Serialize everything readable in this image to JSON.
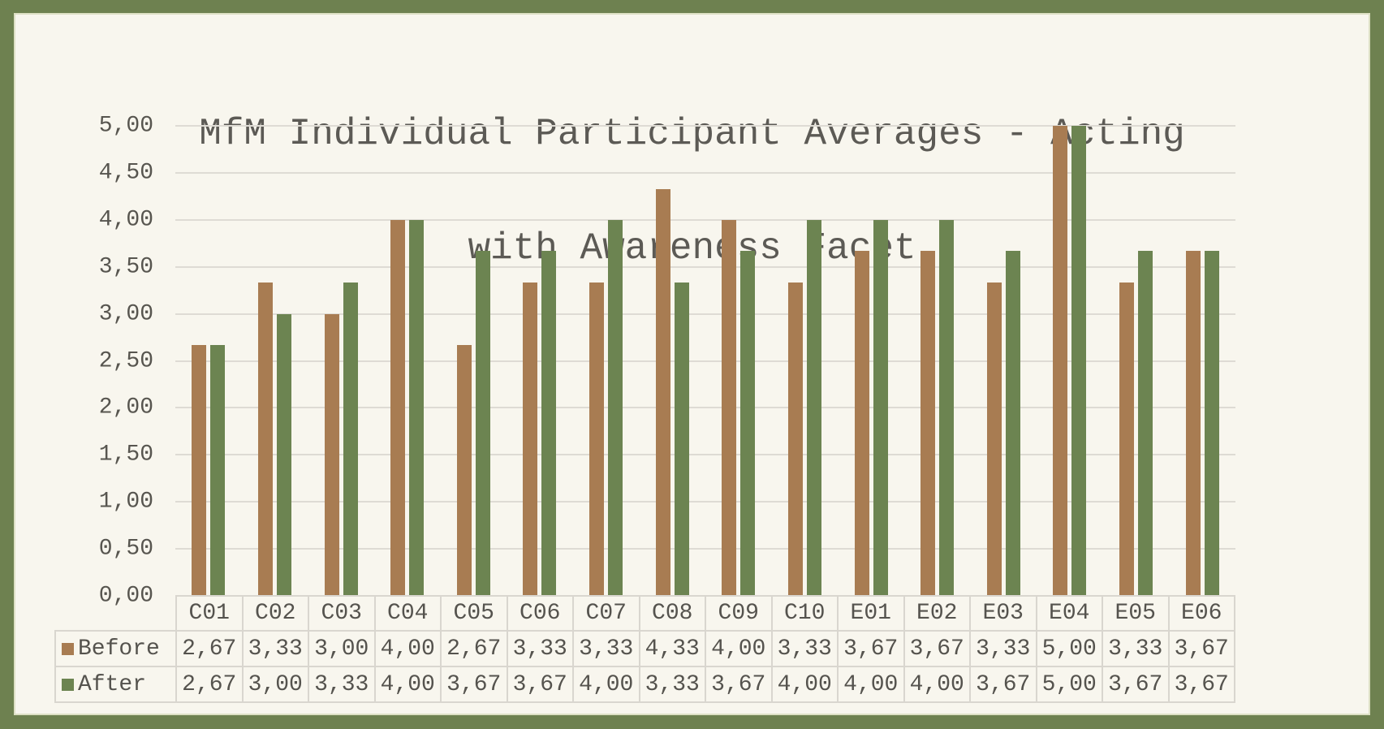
{
  "frame": {
    "border_color": "#6E8150",
    "background_color": "#F8F6EE"
  },
  "chart_data": {
    "type": "bar",
    "title": "MfM Individual Participant Averages - Acting with Awareness Facet",
    "title_lines": [
      "MfM Individual Participant Averages - Acting",
      "with Awareness Facet"
    ],
    "categories": [
      "C01",
      "C02",
      "C03",
      "C04",
      "C05",
      "C06",
      "C07",
      "C08",
      "C09",
      "C10",
      "E01",
      "E02",
      "E03",
      "E04",
      "E05",
      "E06"
    ],
    "series": [
      {
        "name": "Before",
        "color": "#A87C52",
        "values": [
          2.67,
          3.33,
          3.0,
          4.0,
          2.67,
          3.33,
          3.33,
          4.33,
          4.0,
          3.33,
          3.67,
          3.67,
          3.33,
          5.0,
          3.33,
          3.67
        ],
        "labels": [
          "2,67",
          "3,33",
          "3,00",
          "4,00",
          "2,67",
          "3,33",
          "3,33",
          "4,33",
          "4,00",
          "3,33",
          "3,67",
          "3,67",
          "3,33",
          "5,00",
          "3,33",
          "3,67"
        ]
      },
      {
        "name": "After",
        "color": "#6C8451",
        "values": [
          2.67,
          3.0,
          3.33,
          4.0,
          3.67,
          3.67,
          4.0,
          3.33,
          3.67,
          4.0,
          4.0,
          4.0,
          3.67,
          5.0,
          3.67,
          3.67
        ],
        "labels": [
          "2,67",
          "3,00",
          "3,33",
          "4,00",
          "3,67",
          "3,67",
          "4,00",
          "3,33",
          "3,67",
          "4,00",
          "4,00",
          "4,00",
          "3,67",
          "5,00",
          "3,67",
          "3,67"
        ]
      }
    ],
    "y_axis": {
      "min": 0,
      "max": 5,
      "step": 0.5,
      "tick_labels_top_to_bottom": [
        "5,00",
        "4,50",
        "4,00",
        "3,50",
        "3,00",
        "2,50",
        "2,00",
        "1,50",
        "1,00",
        "0,50",
        "0,00"
      ]
    },
    "grid": true,
    "gridline_color": "#DEDBD4",
    "legend_position": "table-rows-left",
    "decimal_separator": ","
  }
}
